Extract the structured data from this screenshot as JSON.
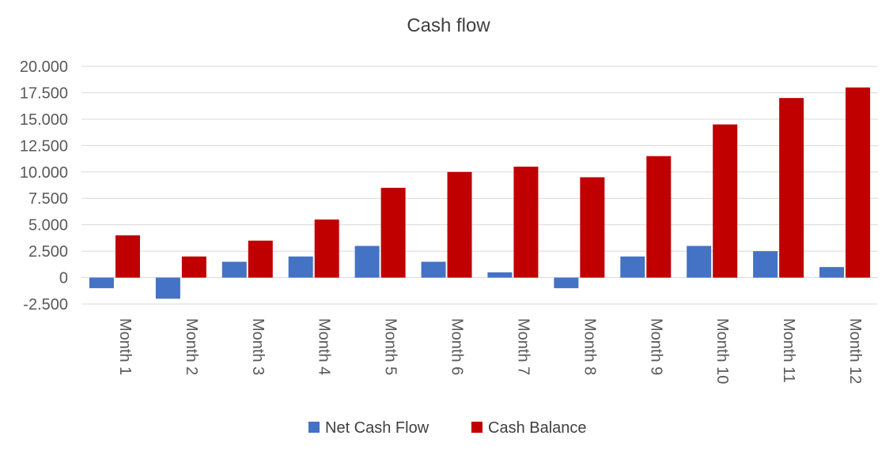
{
  "chart_data": {
    "type": "bar",
    "title": "Cash flow",
    "xlabel": "",
    "ylabel": "",
    "categories": [
      "Month 1",
      "Month 2",
      "Month 3",
      "Month 4",
      "Month 5",
      "Month 6",
      "Month 7",
      "Month 8",
      "Month 9",
      "Month 10",
      "Month 11",
      "Month 12"
    ],
    "series": [
      {
        "name": "Net Cash Flow",
        "color": "#4472c4",
        "values": [
          -1000,
          -2000,
          1500,
          2000,
          3000,
          1500,
          500,
          -1000,
          2000,
          3000,
          2500,
          1000
        ]
      },
      {
        "name": "Cash Balance",
        "color": "#c00000",
        "values": [
          4000,
          2000,
          3500,
          5500,
          8500,
          10000,
          10500,
          9500,
          11500,
          14500,
          17000,
          18000
        ]
      }
    ],
    "ylim": [
      -2500,
      20000
    ],
    "yticks": [
      20000,
      17500,
      15000,
      12500,
      10000,
      7500,
      5000,
      2500,
      0,
      -2500
    ],
    "ytick_labels": [
      "20.000",
      "17.500",
      "15.000",
      "12.500",
      "10.000",
      "7.500",
      "5.000",
      "2.500",
      "0",
      "-2.500"
    ],
    "grid": true,
    "legend_position": "bottom"
  }
}
